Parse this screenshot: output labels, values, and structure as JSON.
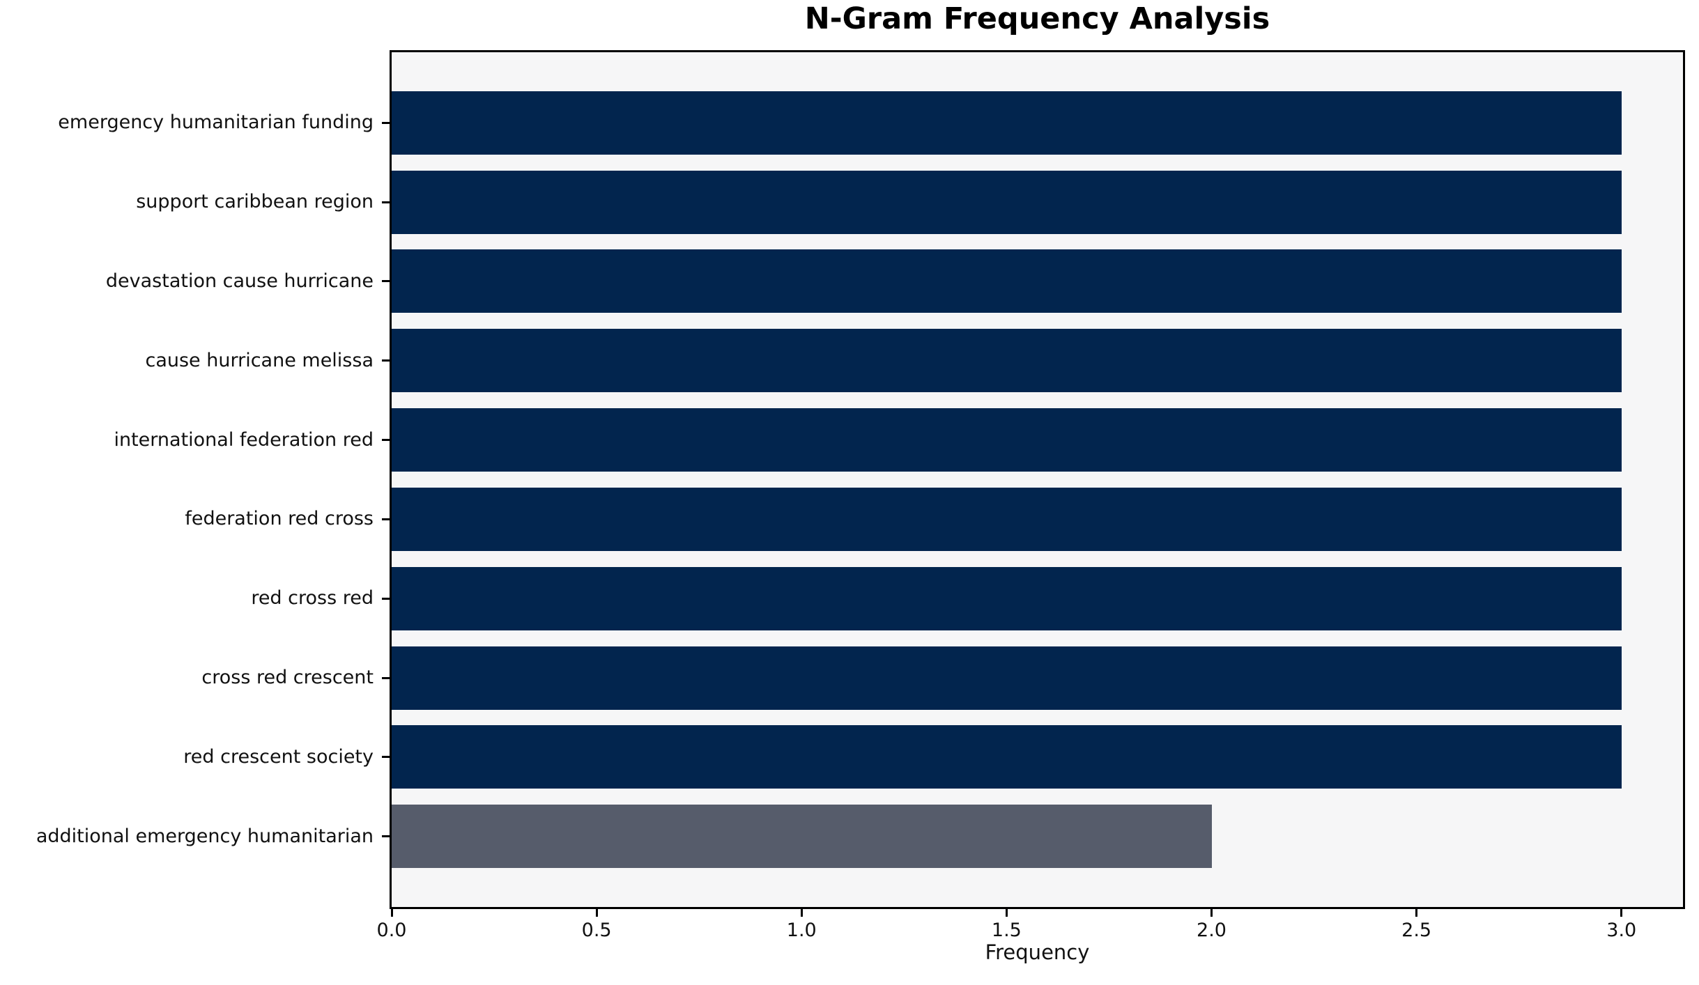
{
  "chart_data": {
    "type": "bar",
    "orientation": "horizontal",
    "title": "N-Gram Frequency Analysis",
    "xlabel": "Frequency",
    "ylabel": "",
    "categories": [
      "emergency humanitarian funding",
      "support caribbean region",
      "devastation cause hurricane",
      "cause hurricane melissa",
      "international federation red",
      "federation red cross",
      "red cross red",
      "cross red crescent",
      "red crescent society",
      "additional emergency humanitarian"
    ],
    "values": [
      3,
      3,
      3,
      3,
      3,
      3,
      3,
      3,
      3,
      2
    ],
    "bar_colors": [
      "#02254e",
      "#02254e",
      "#02254e",
      "#02254e",
      "#02254e",
      "#02254e",
      "#02254e",
      "#02254e",
      "#02254e",
      "#565c6b"
    ],
    "default_bar_color": "#02254e",
    "highlight_bar_color": "#565c6b",
    "xlim": [
      0,
      3.15
    ],
    "xticks": {
      "values": [
        0,
        0.5,
        1,
        1.5,
        2,
        2.5,
        3
      ],
      "labels": [
        "0.0",
        "0.5",
        "1.0",
        "1.5",
        "2.0",
        "2.5",
        "3.0"
      ]
    },
    "bar_height_ratio": 0.8,
    "grid": false,
    "legend": "none",
    "plot_background": "#f6f6f7",
    "figure_background": "#ffffff",
    "spine_color": "#000000",
    "text_color": "#111111"
  }
}
